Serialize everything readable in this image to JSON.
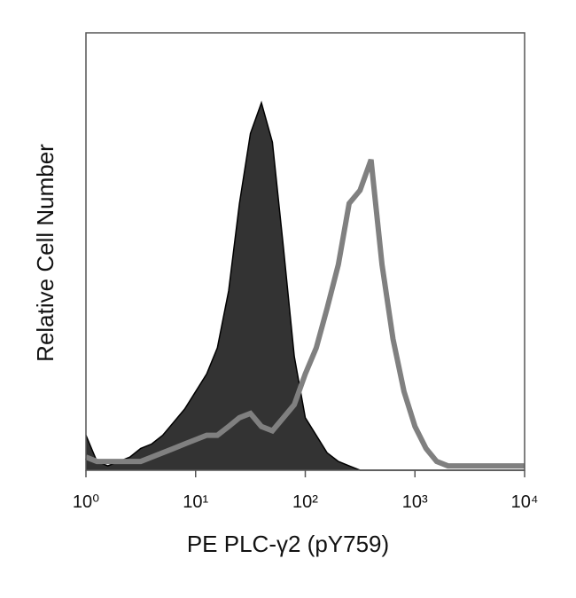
{
  "chart_data": {
    "type": "histogram-overlay",
    "xlabel": "PE PLC-γ2 (pY759)",
    "ylabel": "Relative Cell Number",
    "xscale": "log",
    "xlim": [
      1,
      10000
    ],
    "xticks": [
      {
        "value": 1,
        "label": "10⁰"
      },
      {
        "value": 10,
        "label": "10¹"
      },
      {
        "value": 100,
        "label": "10²"
      },
      {
        "value": 1000,
        "label": "10³"
      },
      {
        "value": 10000,
        "label": "10⁴"
      }
    ],
    "ylim": [
      0,
      100
    ],
    "x": [
      1,
      1.26,
      1.58,
      2,
      2.51,
      3.16,
      3.98,
      5.01,
      6.31,
      7.94,
      10,
      12.6,
      15.8,
      20,
      25.1,
      31.6,
      39.8,
      50.1,
      63.1,
      79.4,
      100,
      126,
      158,
      200,
      251,
      316,
      398,
      501,
      631,
      794,
      1000,
      1260,
      1580,
      2000,
      2510,
      3160,
      3980,
      5010,
      6310,
      7940,
      10000
    ],
    "series": [
      {
        "color": "#333333",
        "fill": true,
        "values": [
          8,
          2,
          1,
          2,
          3,
          5,
          6,
          8,
          11,
          14,
          18,
          22,
          28,
          41,
          61,
          77,
          84,
          75,
          51,
          26,
          12,
          8,
          4,
          2,
          1,
          0,
          0,
          0,
          0,
          0,
          0,
          0,
          0,
          0,
          0,
          0,
          0,
          0,
          0,
          0,
          0
        ]
      },
      {
        "color": "#808080",
        "fill": false,
        "values": [
          3,
          2,
          2,
          2,
          2,
          2,
          3,
          4,
          5,
          6,
          7,
          8,
          8,
          10,
          12,
          13,
          10,
          9,
          12,
          15,
          22,
          28,
          37,
          47,
          61,
          64,
          71,
          47,
          30,
          18,
          10,
          5,
          2,
          1,
          1,
          1,
          1,
          1,
          1,
          1,
          1
        ]
      }
    ]
  }
}
